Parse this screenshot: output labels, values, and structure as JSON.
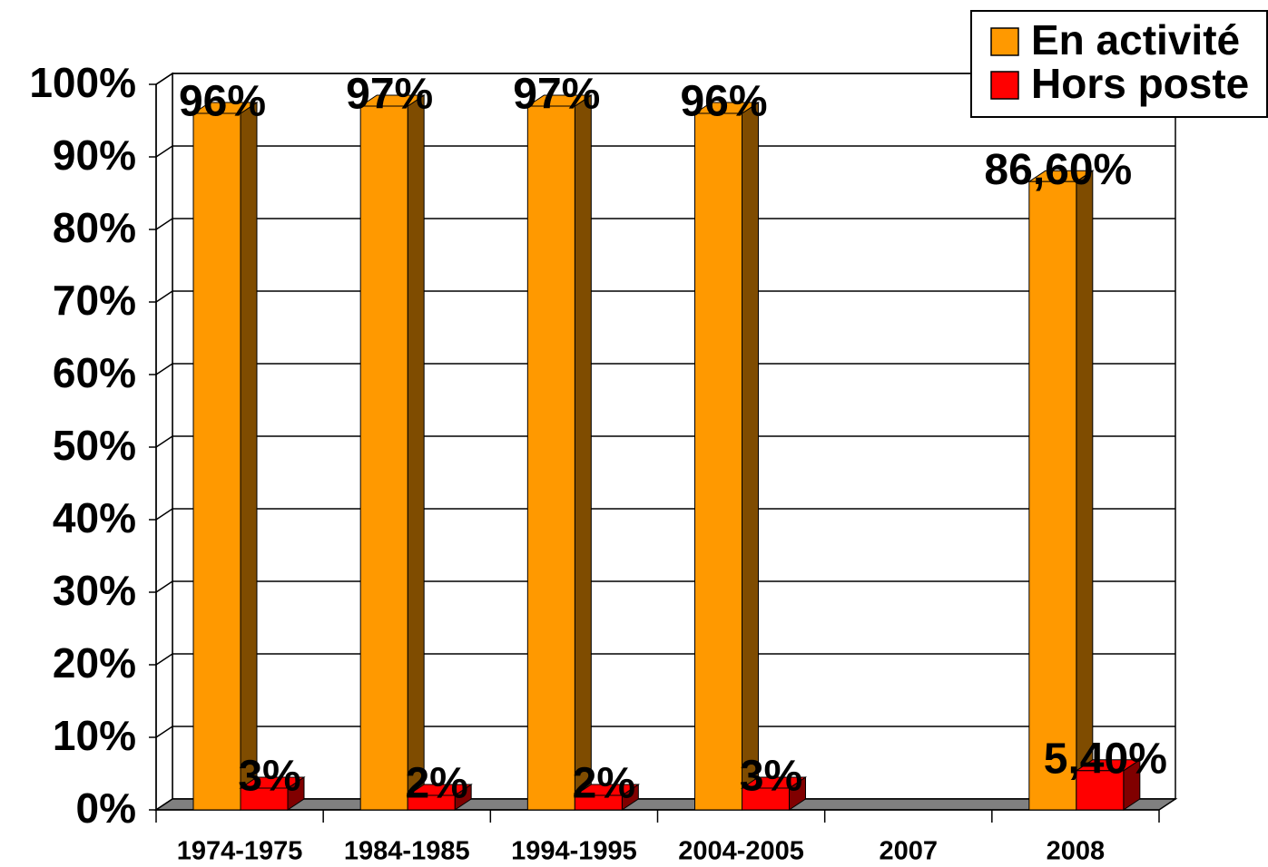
{
  "chart_data": {
    "type": "bar3d",
    "categories": [
      "1974-1975",
      "1984-1985",
      "1994-1995",
      "2004-2005",
      "2007",
      "2008"
    ],
    "series": [
      {
        "name": "En activité",
        "color": "#ff9900",
        "side_color": "#7f4c00",
        "values": [
          96,
          97,
          97,
          96,
          null,
          86.6
        ],
        "value_labels": [
          "96%",
          "97%",
          "97%",
          "96%",
          null,
          "86,60%"
        ]
      },
      {
        "name": "Hors poste",
        "color": "#ff0000",
        "side_color": "#800000",
        "values": [
          3,
          2,
          2,
          3,
          null,
          5.4
        ],
        "value_labels": [
          "3%",
          "2%",
          "2%",
          "3%",
          null,
          "5,40%"
        ]
      }
    ],
    "ylim": [
      0,
      100
    ],
    "yticks": [
      {
        "value": 0,
        "label": "0%"
      },
      {
        "value": 10,
        "label": "10%"
      },
      {
        "value": 20,
        "label": "20%"
      },
      {
        "value": 30,
        "label": "30%"
      },
      {
        "value": 40,
        "label": "40%"
      },
      {
        "value": 50,
        "label": "50%"
      },
      {
        "value": 60,
        "label": "60%"
      },
      {
        "value": 70,
        "label": "70%"
      },
      {
        "value": 80,
        "label": "80%"
      },
      {
        "value": 90,
        "label": "90%"
      },
      {
        "value": 100,
        "label": "100%"
      }
    ],
    "grid": true,
    "legend": "top-right"
  }
}
